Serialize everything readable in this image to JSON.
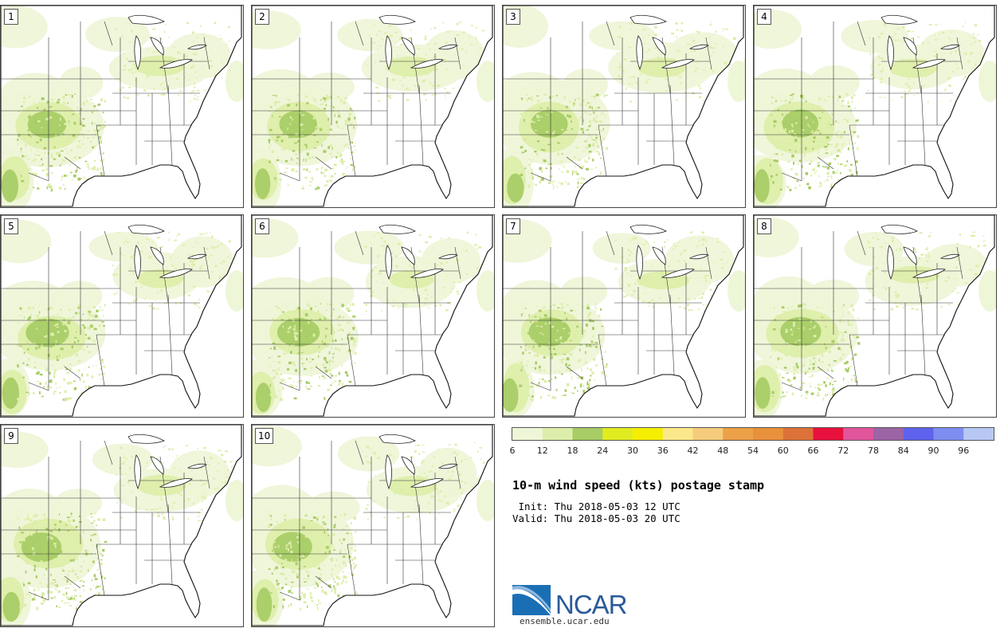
{
  "panels": [
    {
      "label": "1"
    },
    {
      "label": "2"
    },
    {
      "label": "3"
    },
    {
      "label": "4"
    },
    {
      "label": "5"
    },
    {
      "label": "6"
    },
    {
      "label": "7"
    },
    {
      "label": "8"
    },
    {
      "label": "9"
    },
    {
      "label": "10"
    }
  ],
  "colorbar": {
    "colors": [
      "#eef6d8",
      "#ddeeaa",
      "#a8cc66",
      "#e0ec20",
      "#f6ee00",
      "#fbe88a",
      "#f4cc7c",
      "#eca048",
      "#e8903c",
      "#dc7238",
      "#e8103c",
      "#e0559c",
      "#9c64a4",
      "#5e62ec",
      "#7e8ef0",
      "#b8c8f4"
    ],
    "ticks": [
      "6",
      "12",
      "18",
      "24",
      "30",
      "36",
      "42",
      "48",
      "54",
      "60",
      "66",
      "72",
      "78",
      "84",
      "90",
      "96"
    ]
  },
  "title": "10-m wind speed (kts) postage stamp",
  "init_line": " Init: Thu 2018-05-03 12 UTC",
  "valid_line": "Valid: Thu 2018-05-03 20 UTC",
  "logo": {
    "text": "NCAR",
    "url": "ensemble.ucar.edu"
  }
}
